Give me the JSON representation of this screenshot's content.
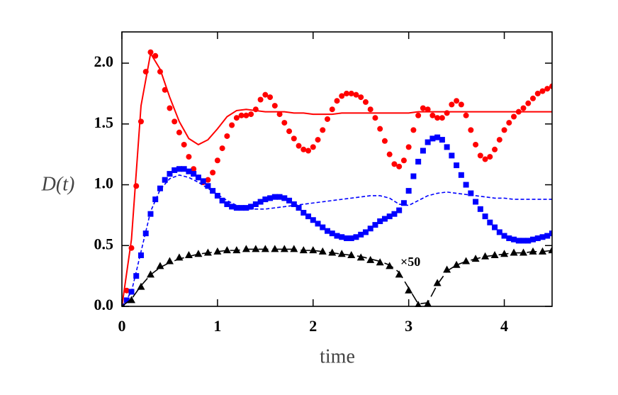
{
  "chart_data": {
    "type": "line",
    "x_label": "time",
    "y_label": "D(t)",
    "annotation": "×50",
    "xlim": [
      0,
      4.5
    ],
    "ylim": [
      0,
      2.257
    ],
    "xticks": [
      0,
      1,
      2,
      3,
      4
    ],
    "yticks": [
      {
        "value": 0,
        "label": "0.0"
      },
      0.5,
      {
        "value": 1,
        "label": "1.0"
      },
      1.5,
      {
        "value": 2,
        "label": "2.0"
      }
    ],
    "series": [
      {
        "color": "#ff0000",
        "marker": "circle",
        "dash": "none",
        "x": [
          0,
          0.05,
          0.1,
          0.15,
          0.2,
          0.25,
          0.3,
          0.35,
          0.4,
          0.45,
          0.5,
          0.55,
          0.6,
          0.65,
          0.7,
          0.75,
          0.8,
          0.85,
          0.9,
          0.95,
          1,
          1.05,
          1.1,
          1.15,
          1.2,
          1.25,
          1.3,
          1.35,
          1.4,
          1.45,
          1.5,
          1.55,
          1.6,
          1.65,
          1.7,
          1.75,
          1.8,
          1.85,
          1.9,
          1.95,
          2,
          2.05,
          2.1,
          2.15,
          2.2,
          2.25,
          2.3,
          2.35,
          2.4,
          2.45,
          2.5,
          2.55,
          2.6,
          2.65,
          2.7,
          2.75,
          2.8,
          2.85,
          2.9,
          2.95,
          3,
          3.05,
          3.1,
          3.15,
          3.2,
          3.25,
          3.3,
          3.35,
          3.4,
          3.45,
          3.5,
          3.55,
          3.6,
          3.65,
          3.7,
          3.75,
          3.8,
          3.85,
          3.9,
          3.95,
          4,
          4.05,
          4.1,
          4.15,
          4.2,
          4.25,
          4.3,
          4.35,
          4.4,
          4.45,
          4.5
        ],
        "values": [
          0,
          0.13,
          0.48,
          0.99,
          1.52,
          1.93,
          2.09,
          2.06,
          1.93,
          1.78,
          1.63,
          1.52,
          1.43,
          1.33,
          1.23,
          1.13,
          1.06,
          1.02,
          1.04,
          1.1,
          1.2,
          1.3,
          1.4,
          1.49,
          1.55,
          1.57,
          1.57,
          1.58,
          1.62,
          1.7,
          1.74,
          1.72,
          1.65,
          1.58,
          1.51,
          1.44,
          1.38,
          1.32,
          1.29,
          1.28,
          1.31,
          1.37,
          1.45,
          1.54,
          1.62,
          1.69,
          1.73,
          1.75,
          1.75,
          1.74,
          1.72,
          1.68,
          1.62,
          1.55,
          1.46,
          1.36,
          1.25,
          1.17,
          1.15,
          1.2,
          1.31,
          1.45,
          1.57,
          1.63,
          1.62,
          1.57,
          1.55,
          1.55,
          1.59,
          1.66,
          1.69,
          1.66,
          1.57,
          1.45,
          1.33,
          1.24,
          1.21,
          1.23,
          1.29,
          1.37,
          1.45,
          1.51,
          1.56,
          1.6,
          1.63,
          1.67,
          1.71,
          1.75,
          1.77,
          1.79,
          1.81
        ]
      },
      {
        "color": "#0000ff",
        "marker": "square",
        "dash": "none",
        "x": [
          0,
          0.05,
          0.1,
          0.15,
          0.2,
          0.25,
          0.3,
          0.35,
          0.4,
          0.45,
          0.5,
          0.55,
          0.6,
          0.65,
          0.7,
          0.75,
          0.8,
          0.85,
          0.9,
          0.95,
          1,
          1.05,
          1.1,
          1.15,
          1.2,
          1.25,
          1.3,
          1.35,
          1.4,
          1.45,
          1.5,
          1.55,
          1.6,
          1.65,
          1.7,
          1.75,
          1.8,
          1.85,
          1.9,
          1.95,
          2,
          2.05,
          2.1,
          2.15,
          2.2,
          2.25,
          2.3,
          2.35,
          2.4,
          2.45,
          2.5,
          2.55,
          2.6,
          2.65,
          2.7,
          2.75,
          2.8,
          2.85,
          2.9,
          2.95,
          3,
          3.05,
          3.1,
          3.15,
          3.2,
          3.25,
          3.3,
          3.35,
          3.4,
          3.45,
          3.5,
          3.55,
          3.6,
          3.65,
          3.7,
          3.75,
          3.8,
          3.85,
          3.9,
          3.95,
          4,
          4.05,
          4.1,
          4.15,
          4.2,
          4.25,
          4.3,
          4.35,
          4.4,
          4.45,
          4.5
        ],
        "values": [
          0,
          0.05,
          0.12,
          0.25,
          0.42,
          0.6,
          0.76,
          0.88,
          0.97,
          1.04,
          1.09,
          1.12,
          1.13,
          1.13,
          1.11,
          1.09,
          1.06,
          1.03,
          0.99,
          0.95,
          0.91,
          0.87,
          0.84,
          0.82,
          0.81,
          0.81,
          0.81,
          0.82,
          0.84,
          0.86,
          0.88,
          0.89,
          0.9,
          0.9,
          0.89,
          0.87,
          0.84,
          0.81,
          0.77,
          0.74,
          0.71,
          0.68,
          0.65,
          0.62,
          0.6,
          0.58,
          0.57,
          0.56,
          0.56,
          0.57,
          0.59,
          0.61,
          0.64,
          0.67,
          0.7,
          0.72,
          0.74,
          0.76,
          0.79,
          0.85,
          0.95,
          1.07,
          1.19,
          1.28,
          1.35,
          1.38,
          1.39,
          1.37,
          1.31,
          1.24,
          1.16,
          1.08,
          1,
          0.93,
          0.86,
          0.8,
          0.74,
          0.69,
          0.65,
          0.61,
          0.58,
          0.56,
          0.55,
          0.54,
          0.54,
          0.54,
          0.55,
          0.56,
          0.57,
          0.58,
          0.6
        ]
      },
      {
        "color": "#000000",
        "marker": "triangle",
        "dash": "none",
        "x": [
          0,
          0.1,
          0.2,
          0.3,
          0.4,
          0.5,
          0.6,
          0.7,
          0.8,
          0.9,
          1,
          1.1,
          1.2,
          1.3,
          1.4,
          1.5,
          1.6,
          1.7,
          1.8,
          1.9,
          2,
          2.1,
          2.2,
          2.3,
          2.4,
          2.5,
          2.6,
          2.7,
          2.8,
          2.9,
          3,
          3.1,
          3.2,
          3.3,
          3.4,
          3.5,
          3.6,
          3.7,
          3.8,
          3.9,
          4,
          4.1,
          4.2,
          4.3,
          4.4,
          4.5
        ],
        "values": [
          0,
          0.05,
          0.16,
          0.26,
          0.33,
          0.37,
          0.4,
          0.42,
          0.43,
          0.44,
          0.45,
          0.46,
          0.46,
          0.47,
          0.47,
          0.47,
          0.47,
          0.47,
          0.47,
          0.46,
          0.46,
          0.45,
          0.44,
          0.43,
          0.42,
          0.4,
          0.38,
          0.36,
          0.33,
          0.26,
          0.13,
          0.01,
          0.02,
          0.19,
          0.3,
          0.34,
          0.37,
          0.39,
          0.41,
          0.42,
          0.43,
          0.44,
          0.44,
          0.45,
          0.45,
          0.46
        ]
      },
      {
        "color": "#ff0000",
        "marker": "none",
        "dash": "solid",
        "x": [
          0,
          0.1,
          0.2,
          0.3,
          0.4,
          0.5,
          0.6,
          0.7,
          0.8,
          0.9,
          1,
          1.1,
          1.2,
          1.3,
          1.4,
          1.5,
          1.6,
          1.7,
          1.8,
          1.9,
          2,
          2.1,
          2.2,
          2.3,
          2.4,
          2.5,
          2.6,
          2.7,
          2.8,
          2.9,
          3,
          3.1,
          3.2,
          3.3,
          3.4,
          3.5,
          3.6,
          3.7,
          3.8,
          3.9,
          4,
          4.1,
          4.2,
          4.3,
          4.4,
          4.5
        ],
        "values": [
          0,
          0.55,
          1.65,
          2.08,
          1.95,
          1.72,
          1.52,
          1.38,
          1.33,
          1.37,
          1.46,
          1.56,
          1.61,
          1.62,
          1.61,
          1.6,
          1.6,
          1.6,
          1.59,
          1.59,
          1.58,
          1.58,
          1.58,
          1.59,
          1.59,
          1.59,
          1.59,
          1.59,
          1.59,
          1.59,
          1.59,
          1.6,
          1.6,
          1.6,
          1.6,
          1.6,
          1.6,
          1.6,
          1.6,
          1.6,
          1.6,
          1.6,
          1.6,
          1.6,
          1.6,
          1.6
        ]
      },
      {
        "color": "#0000ff",
        "marker": "none",
        "dash": "short",
        "x": [
          0,
          0.1,
          0.2,
          0.3,
          0.4,
          0.5,
          0.6,
          0.7,
          0.8,
          0.9,
          1,
          1.1,
          1.2,
          1.3,
          1.4,
          1.5,
          1.6,
          1.7,
          1.8,
          1.9,
          2,
          2.1,
          2.2,
          2.3,
          2.4,
          2.5,
          2.6,
          2.7,
          2.8,
          2.9,
          3,
          3.1,
          3.2,
          3.3,
          3.4,
          3.5,
          3.6,
          3.7,
          3.8,
          3.9,
          4,
          4.1,
          4.2,
          4.3,
          4.4,
          4.5
        ],
        "values": [
          0,
          0.12,
          0.45,
          0.78,
          0.96,
          1.05,
          1.08,
          1.06,
          1.02,
          0.97,
          0.92,
          0.87,
          0.83,
          0.8,
          0.8,
          0.8,
          0.81,
          0.82,
          0.83,
          0.84,
          0.85,
          0.86,
          0.87,
          0.88,
          0.89,
          0.9,
          0.91,
          0.91,
          0.89,
          0.84,
          0.83,
          0.87,
          0.91,
          0.93,
          0.94,
          0.93,
          0.92,
          0.91,
          0.9,
          0.89,
          0.89,
          0.88,
          0.88,
          0.88,
          0.88,
          0.88
        ]
      },
      {
        "color": "#000000",
        "marker": "none",
        "dash": "long",
        "x": [
          0,
          0.1,
          0.2,
          0.3,
          0.4,
          0.5,
          0.6,
          0.7,
          0.8,
          0.9,
          1,
          1.1,
          1.2,
          1.3,
          1.4,
          1.5,
          1.6,
          1.7,
          1.8,
          1.9,
          2,
          2.1,
          2.2,
          2.3,
          2.4,
          2.5,
          2.6,
          2.7,
          2.8,
          2.9,
          3,
          3.1,
          3.2,
          3.3,
          3.4,
          3.5,
          3.6,
          3.7,
          3.8,
          3.9,
          4,
          4.1,
          4.2,
          4.3,
          4.4,
          4.5
        ],
        "values": [
          0,
          0.06,
          0.17,
          0.26,
          0.32,
          0.36,
          0.39,
          0.41,
          0.43,
          0.44,
          0.45,
          0.46,
          0.46,
          0.47,
          0.47,
          0.47,
          0.47,
          0.47,
          0.47,
          0.46,
          0.46,
          0.45,
          0.44,
          0.43,
          0.42,
          0.41,
          0.39,
          0.37,
          0.34,
          0.28,
          0.15,
          0.02,
          0.03,
          0.18,
          0.29,
          0.34,
          0.37,
          0.39,
          0.41,
          0.42,
          0.43,
          0.44,
          0.44,
          0.45,
          0.45,
          0.46
        ]
      }
    ]
  }
}
